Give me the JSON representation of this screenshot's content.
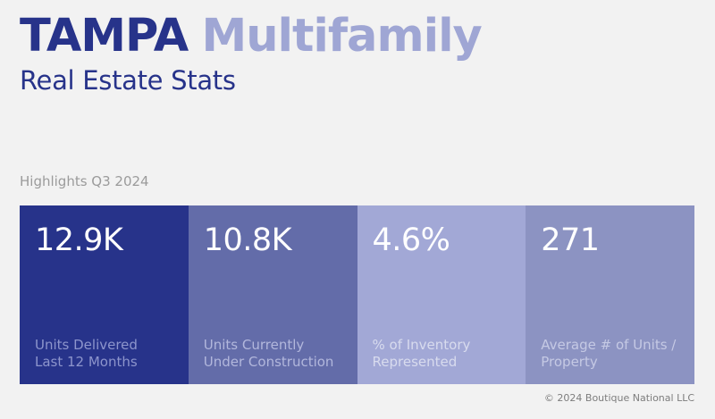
{
  "header": {
    "city": "TAMPA",
    "property_type": "Multifamily",
    "subtitle": "Real Estate Stats"
  },
  "highlights": {
    "label": "Highlights Q3 2024"
  },
  "stats": [
    {
      "value": "12.9K",
      "label": "Units Delivered\nLast 12 Months",
      "bg_color": "#27338a",
      "label_color": "#8d95cc"
    },
    {
      "value": "10.8K",
      "label": "Units Currently\nUnder Construction",
      "bg_color": "#636ca9",
      "label_color": "#b2b7dc"
    },
    {
      "value": "4.6%",
      "label": "% of Inventory\nRepresented",
      "bg_color": "#a2a8d6",
      "label_color": "#d8dbee"
    },
    {
      "value": "271",
      "label": "Average # of Units /\nProperty",
      "bg_color": "#8c93c2",
      "label_color": "#c5c9e4"
    }
  ],
  "footer": {
    "copyright": "© 2024 Boutique National LLC"
  },
  "colors": {
    "brand_primary": "#27338a",
    "brand_light": "#9fa6d4",
    "background": "#f2f2f2"
  }
}
